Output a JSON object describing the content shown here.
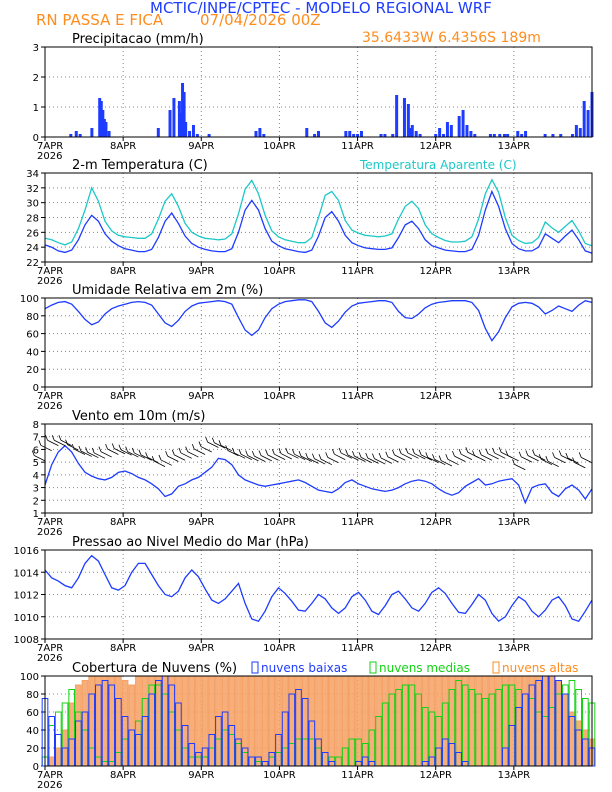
{
  "header": {
    "title": "MCTIC/INPE/CPTEC - MODELO REGIONAL WRF",
    "location": "RN PASSA E FICA",
    "date": "07/04/2026 00Z",
    "coords": "35.6433W 6.4356S 189m"
  },
  "colors": {
    "title": "#1e3cff",
    "orange": "#ff8c1e",
    "blue": "#1e3cff",
    "cyan": "#1ec8c8",
    "green": "#14d214",
    "orange_fill": "#f5a064",
    "black": "#000000"
  },
  "x_axis": {
    "ticks": [
      "7APR",
      "8APR",
      "9APR",
      "10APR",
      "11APR",
      "12APR",
      "13APR"
    ],
    "year": "2026",
    "range_days": [
      0,
      7
    ]
  },
  "chart_data": [
    {
      "type": "bar",
      "title": "Precipitacao (mm/h)",
      "ylim": [
        0,
        3
      ],
      "yticks": [
        "0",
        "1",
        "2",
        "3"
      ],
      "x_unit": "days since 7APR 00Z",
      "x": [
        0.33,
        0.4,
        0.45,
        0.6,
        0.7,
        0.72,
        0.74,
        0.76,
        0.78,
        0.82,
        1.45,
        1.6,
        1.65,
        1.72,
        1.74,
        1.76,
        1.78,
        1.8,
        1.85,
        1.9,
        1.95,
        2.1,
        2.7,
        2.75,
        2.8,
        3.35,
        3.45,
        3.5,
        3.85,
        3.9,
        3.95,
        4.0,
        4.05,
        4.3,
        4.35,
        4.45,
        4.5,
        4.6,
        4.65,
        4.68,
        4.7,
        4.75,
        4.8,
        5.0,
        5.05,
        5.1,
        5.15,
        5.2,
        5.3,
        5.35,
        5.4,
        5.45,
        5.5,
        5.7,
        5.75,
        5.82,
        5.88,
        5.92,
        6.05,
        6.1,
        6.15,
        6.4,
        6.5,
        6.6,
        6.75,
        6.8,
        6.85,
        6.9,
        6.95,
        7.0
      ],
      "values": [
        0.1,
        0.2,
        0.1,
        0.3,
        1.3,
        1.2,
        0.9,
        0.6,
        0.5,
        0.2,
        0.3,
        0.9,
        1.3,
        1.2,
        0.8,
        1.8,
        1.5,
        0.5,
        0.2,
        0.4,
        0.1,
        0.1,
        0.2,
        0.3,
        0.1,
        0.3,
        0.1,
        0.2,
        0.2,
        0.2,
        0.1,
        0.1,
        0.2,
        0.1,
        0.1,
        0.1,
        1.4,
        1.3,
        1.1,
        0.3,
        0.4,
        0.2,
        0.1,
        0.1,
        0.3,
        0.1,
        0.5,
        0.4,
        0.7,
        0.9,
        0.4,
        0.2,
        0.1,
        0.1,
        0.1,
        0.1,
        0.1,
        0.1,
        0.2,
        0.1,
        0.2,
        0.1,
        0.1,
        0.1,
        0.1,
        0.4,
        0.3,
        1.2,
        0.9,
        1.5
      ]
    },
    {
      "type": "line",
      "title": "2-m Temperatura (C)",
      "ylim": [
        22,
        34
      ],
      "yticks": [
        "22",
        "24",
        "26",
        "28",
        "30",
        "32",
        "34"
      ],
      "series": [
        {
          "name": "2-m Temperatura (C)",
          "color": "#1e3cff",
          "values": [
            24.3,
            24,
            23.5,
            23.3,
            23.6,
            25,
            27,
            28.3,
            27.5,
            25.8,
            24.8,
            24.2,
            23.8,
            23.6,
            23.4,
            23.4,
            23.7,
            25.3,
            27.5,
            28.6,
            27.2,
            25.5,
            24.5,
            24,
            23.7,
            23.5,
            23.4,
            23.4,
            23.8,
            26,
            29,
            30.3,
            29,
            26.5,
            24.8,
            24.2,
            23.8,
            23.6,
            23.4,
            23.3,
            23.6,
            25.5,
            28,
            28.8,
            27.5,
            25.6,
            24.6,
            24.2,
            23.9,
            23.8,
            23.7,
            23.7,
            23.9,
            25.3,
            27,
            27.5,
            26.5,
            25,
            24.2,
            23.9,
            23.6,
            23.5,
            23.4,
            23.4,
            23.7,
            25.6,
            29,
            31.5,
            29.5,
            26.5,
            24.5,
            23.8,
            23.5,
            23.5,
            24,
            25.8,
            25.2,
            24.6,
            25.5,
            26.3,
            25,
            23.5,
            23.2
          ]
        },
        {
          "name": "Temperatura Aparente (C)",
          "color": "#1ec8c8",
          "values": [
            25.2,
            25,
            24.6,
            24.3,
            24.7,
            26.5,
            29,
            32,
            30.2,
            27.5,
            26.2,
            25.6,
            25.4,
            25.3,
            25.2,
            25.2,
            25.8,
            27.8,
            30.2,
            31.2,
            29.5,
            27.2,
            26,
            25.5,
            25.2,
            25.1,
            25,
            25.1,
            25.8,
            28.5,
            31.8,
            33,
            31.2,
            28.3,
            26.2,
            25.4,
            25,
            24.8,
            24.6,
            24.6,
            25.3,
            28,
            31,
            31.5,
            30.3,
            27.6,
            26.3,
            25.9,
            25.6,
            25.5,
            25.4,
            25.5,
            25.8,
            27.8,
            29.5,
            30.2,
            29.2,
            27,
            25.8,
            25.3,
            24.9,
            24.7,
            24.7,
            24.8,
            25.4,
            27.8,
            31.2,
            33.1,
            31.4,
            28,
            25.6,
            24.9,
            24.5,
            24.6,
            25.3,
            27.4,
            26.6,
            26,
            26.8,
            27.6,
            26.2,
            24.5,
            24.2
          ]
        }
      ]
    },
    {
      "type": "line",
      "title": "Umidade Relativa em 2m (%)",
      "ylim": [
        0,
        100
      ],
      "yticks": [
        "0",
        "20",
        "40",
        "60",
        "80",
        "100"
      ],
      "series": [
        {
          "name": "Umidade Relativa em 2m (%)",
          "color": "#1e3cff",
          "values": [
            88,
            92,
            95,
            96,
            93,
            85,
            76,
            70,
            73,
            82,
            88,
            91,
            93,
            95,
            96,
            95,
            92,
            82,
            72,
            68,
            75,
            85,
            91,
            94,
            95,
            96,
            97,
            96,
            93,
            78,
            64,
            58,
            64,
            78,
            88,
            93,
            96,
            97,
            98,
            98,
            96,
            85,
            72,
            67,
            74,
            84,
            91,
            94,
            95,
            96,
            97,
            97,
            95,
            85,
            78,
            77,
            82,
            89,
            93,
            95,
            96,
            97,
            97,
            97,
            95,
            86,
            66,
            52,
            62,
            78,
            90,
            94,
            95,
            94,
            90,
            82,
            86,
            91,
            88,
            85,
            92,
            97,
            95
          ]
        }
      ]
    },
    {
      "type": "line",
      "title": "Vento em 10m (m/s)",
      "ylim": [
        1,
        8
      ],
      "yticks": [
        "1",
        "2",
        "3",
        "4",
        "5",
        "6",
        "7",
        "8"
      ],
      "series": [
        {
          "name": "Vento em 10m (m/s)",
          "color": "#1e3cff",
          "values": [
            3.2,
            4.8,
            5.8,
            6.3,
            5.8,
            4.9,
            4.2,
            3.9,
            3.7,
            3.6,
            3.8,
            4.2,
            4.3,
            4.1,
            3.8,
            3.6,
            3.3,
            2.9,
            2.3,
            2.5,
            3.1,
            3.3,
            3.6,
            3.8,
            4.2,
            4.6,
            5.3,
            5.2,
            4.8,
            4.0,
            3.6,
            3.4,
            3.2,
            3.1,
            3.2,
            3.3,
            3.4,
            3.5,
            3.6,
            3.4,
            3.1,
            2.8,
            2.7,
            2.6,
            2.9,
            3.4,
            3.6,
            3.3,
            3.1,
            2.9,
            2.8,
            2.7,
            2.8,
            3.0,
            3.3,
            3.5,
            3.6,
            3.5,
            3.3,
            2.9,
            2.6,
            2.4,
            2.6,
            3.1,
            3.4,
            3.7,
            3.2,
            3.3,
            3.5,
            3.6,
            3.7,
            3.2,
            1.8,
            3.0,
            3.2,
            3.3,
            2.6,
            2.3,
            2.9,
            3.2,
            2.8,
            2.1,
            2.9
          ]
        }
      ]
    },
    {
      "type": "line",
      "title": "Pressao ao Nivel Medio do Mar (hPa)",
      "ylim": [
        1008,
        1016
      ],
      "yticks": [
        "1008",
        "1010",
        "1012",
        "1014",
        "1016"
      ],
      "series": [
        {
          "name": "Pressao ao Nivel Medio do Mar (hPa)",
          "color": "#1e3cff",
          "values": [
            1014.2,
            1013.5,
            1013.2,
            1012.8,
            1012.6,
            1013.5,
            1014.8,
            1015.5,
            1015,
            1013.8,
            1012.6,
            1012.4,
            1012.8,
            1014,
            1014.8,
            1014.8,
            1013.8,
            1012.8,
            1012,
            1011.8,
            1012.3,
            1013.5,
            1014.2,
            1013.6,
            1012.5,
            1011.5,
            1011.2,
            1011.6,
            1012.3,
            1013,
            1011.2,
            1009.8,
            1009.6,
            1010.5,
            1011.8,
            1012.6,
            1012.1,
            1011.4,
            1010.6,
            1010.5,
            1011.2,
            1012,
            1011.6,
            1010.8,
            1010.3,
            1010.8,
            1011.8,
            1012.2,
            1011.5,
            1010.5,
            1010.2,
            1011,
            1012,
            1012.3,
            1011.6,
            1010.8,
            1010.5,
            1011.2,
            1012.2,
            1012.6,
            1012.1,
            1011.2,
            1010.4,
            1010.3,
            1011.1,
            1012,
            1011.5,
            1010.3,
            1009.6,
            1010,
            1011,
            1011.8,
            1011.4,
            1010.5,
            1010,
            1010.6,
            1011.5,
            1011.8,
            1011,
            1009.8,
            1009.6,
            1010.5,
            1011.5
          ]
        }
      ]
    },
    {
      "type": "bar",
      "title": "Cobertura de Nuvens (%)",
      "ylim": [
        0,
        100
      ],
      "yticks": [
        "0",
        "20",
        "40",
        "60",
        "80",
        "100"
      ],
      "legend": [
        "nuvens baixas",
        "nuvens medias",
        "nuvens altas"
      ],
      "series": [
        {
          "name": "nuvens baixas",
          "color": "#1e3cff",
          "values": [
            75,
            55,
            35,
            20,
            30,
            50,
            60,
            80,
            90,
            95,
            90,
            75,
            55,
            40,
            35,
            55,
            80,
            95,
            100,
            90,
            70,
            45,
            25,
            15,
            20,
            35,
            55,
            60,
            45,
            30,
            20,
            10,
            10,
            5,
            15,
            35,
            60,
            80,
            85,
            75,
            50,
            30,
            15,
            5,
            0,
            0,
            0,
            5,
            10,
            5,
            0,
            0,
            0,
            0,
            0,
            0,
            0,
            5,
            10,
            20,
            30,
            25,
            15,
            5,
            0,
            0,
            0,
            0,
            0,
            20,
            45,
            65,
            80,
            90,
            95,
            100,
            100,
            95,
            80,
            55,
            40,
            30,
            20
          ]
        },
        {
          "name": "nuvens medias",
          "color": "#14d214",
          "values": [
            10,
            45,
            60,
            70,
            85,
            60,
            40,
            20,
            10,
            5,
            5,
            15,
            30,
            40,
            50,
            75,
            90,
            90,
            80,
            60,
            40,
            20,
            10,
            10,
            10,
            20,
            30,
            40,
            35,
            25,
            15,
            10,
            5,
            5,
            10,
            15,
            20,
            25,
            30,
            30,
            30,
            20,
            15,
            10,
            10,
            20,
            30,
            30,
            25,
            40,
            55,
            70,
            80,
            85,
            90,
            90,
            80,
            65,
            60,
            55,
            70,
            85,
            95,
            90,
            85,
            80,
            75,
            80,
            85,
            90,
            90,
            85,
            80,
            75,
            60,
            55,
            65,
            80,
            90,
            95,
            85,
            75,
            70
          ]
        },
        {
          "name": "nuvens altas",
          "color": "#f5a064",
          "values": [
            0,
            10,
            20,
            40,
            70,
            90,
            95,
            100,
            100,
            100,
            100,
            100,
            95,
            90,
            100,
            100,
            100,
            100,
            100,
            100,
            100,
            100,
            100,
            100,
            100,
            100,
            100,
            100,
            100,
            100,
            100,
            100,
            100,
            100,
            100,
            100,
            100,
            100,
            100,
            100,
            100,
            100,
            100,
            100,
            100,
            100,
            100,
            100,
            100,
            100,
            100,
            100,
            100,
            100,
            100,
            100,
            100,
            100,
            100,
            100,
            100,
            100,
            100,
            100,
            100,
            100,
            100,
            100,
            100,
            100,
            100,
            100,
            100,
            100,
            100,
            100,
            100,
            95,
            80,
            60,
            50,
            40,
            30
          ]
        }
      ]
    }
  ]
}
